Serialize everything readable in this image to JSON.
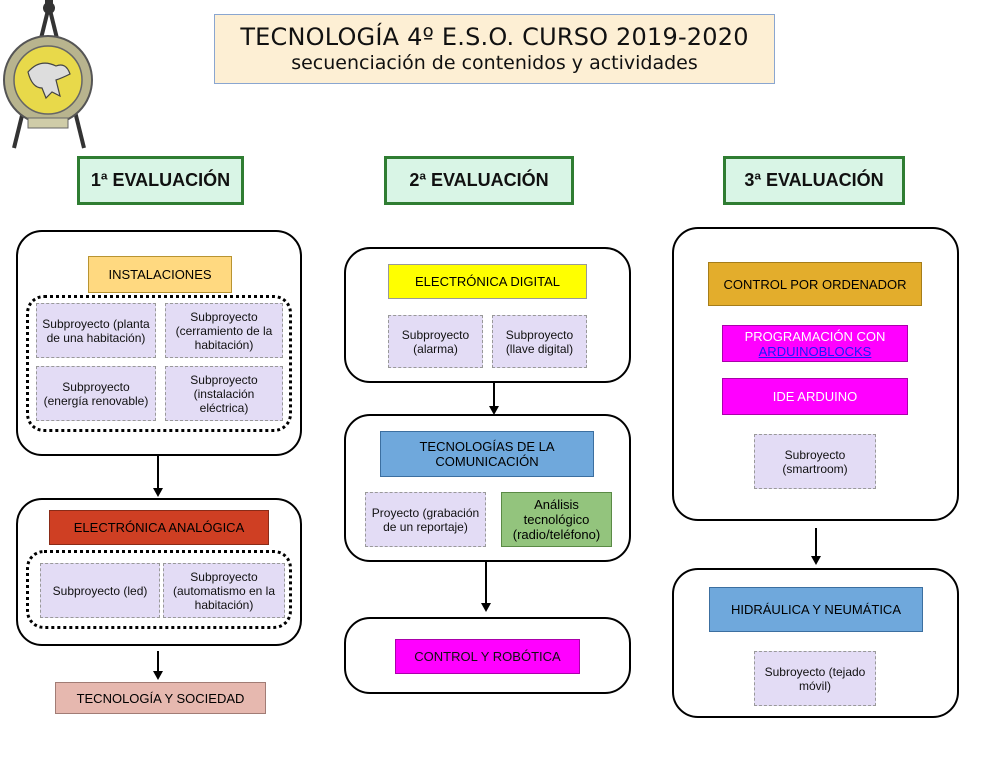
{
  "header": {
    "title": "TECNOLOGÍA 4º E.S.O. CURSO 2019-2020",
    "subtitle": "secuenciación de contenidos y actividades"
  },
  "logo": {
    "icon": "compass-seal-logo"
  },
  "evaluations": [
    {
      "label": "1ª EVALUACIÓN"
    },
    {
      "label": "2ª EVALUACIÓN"
    },
    {
      "label": "3ª EVALUACIÓN"
    }
  ],
  "col1": {
    "instalaciones": {
      "title": "INSTALACIONES",
      "subs": [
        "Subproyecto (planta de una habitación)",
        "Subproyecto (cerramiento de la habitación)",
        "Subproyecto (energía renovable)",
        "Subproyecto (instalación eléctrica)"
      ]
    },
    "analogica": {
      "title": "ELECTRÓNICA ANALÓGICA",
      "subs": [
        "Subproyecto (led)",
        "Subproyecto (automatismo en la habitación)"
      ]
    },
    "sociedad": "TECNOLOGÍA Y SOCIEDAD"
  },
  "col2": {
    "digital": {
      "title": "ELECTRÓNICA DIGITAL",
      "subs": [
        "Subproyecto (alarma)",
        "Subproyecto (llave digital)"
      ]
    },
    "comunicacion": {
      "title": "TECNOLOGÍAS DE LA COMUNICACIÓN",
      "proyecto": "Proyecto (grabación de un reportaje)",
      "analisis": "Análisis tecnológico (radio/teléfono)"
    },
    "robotica": "CONTROL Y ROBÓTICA"
  },
  "col3": {
    "control": {
      "title": "CONTROL POR ORDENADOR",
      "programacion_prefix": "PROGRAMACIÓN CON",
      "programacion_link": "ARDUINOBLOCKS",
      "ide": "IDE ARDUINO",
      "sub": "Subroyecto (smartroom)"
    },
    "hidraulica": {
      "title": "HIDRÁULICA Y NEUMÁTICA",
      "sub": "Subroyecto (tejado móvil)"
    }
  },
  "colors": {
    "instalaciones": "#ffd980",
    "analogica": "#cf3f23",
    "sociedad": "#e6b8af",
    "digital": "#ffff00",
    "comunicacion": "#6fa8dc",
    "analisis": "#93c47d",
    "robotica": "#ff00ff",
    "control": "#e3ad2c",
    "hidraulica": "#6fa8dc",
    "subproyecto": "#e3dcf5",
    "evaluacion": "#d9f5e6"
  }
}
